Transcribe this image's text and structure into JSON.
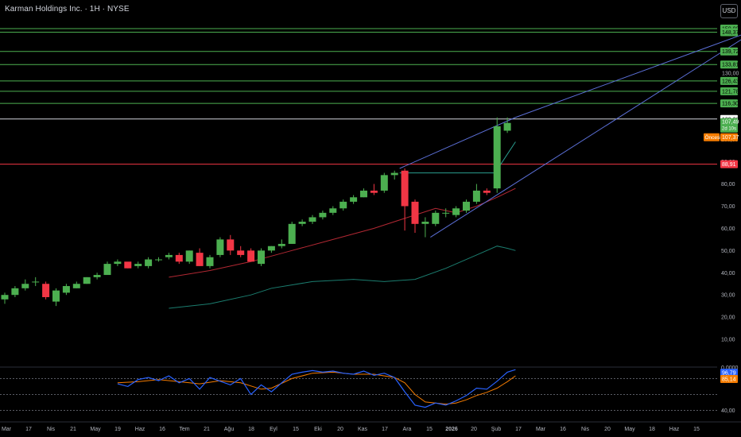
{
  "header": {
    "title": "Karman Holdings Inc. · 1H · NYSE",
    "currency_button": "USD"
  },
  "colors": {
    "up": "#4caf50",
    "down": "#f23645",
    "hline_green": "#4caf50",
    "hline_red": "#f23645",
    "hline_white": "#d1d4dc",
    "trend_blue": "#5b6fd6",
    "sma_red": "#b22833",
    "sma_teal": "#1b7d6f",
    "rsi_blue": "#2962ff",
    "rsi_orange": "#f57c00",
    "tag_green": "#4caf50",
    "tag_orange": "#f57c00"
  },
  "chart_data": {
    "type": "candlestick",
    "title": "Karman Holdings Inc. · 1H · NYSE",
    "currency": "USD",
    "ylim": [
      0,
      152
    ],
    "price_axis_ticks": [
      150,
      130,
      109.26,
      100,
      90,
      80,
      70,
      60,
      50,
      40,
      30,
      20,
      10,
      0
    ],
    "time_axis_labels": [
      "Mar",
      "17",
      "Nis",
      "21",
      "May",
      "19",
      "Haz",
      "16",
      "Tem",
      "21",
      "Ağu",
      "18",
      "Eyl",
      "15",
      "Eki",
      "20",
      "Kas",
      "17",
      "Ara",
      "15",
      "2026",
      "20",
      "Şub",
      "17",
      "Mar",
      "16",
      "Nis",
      "20",
      "May",
      "18",
      "Haz",
      "15"
    ],
    "candles": [
      {
        "o": 28,
        "h": 31,
        "l": 26,
        "c": 30
      },
      {
        "o": 30,
        "h": 34,
        "l": 29,
        "c": 33
      },
      {
        "o": 33,
        "h": 37,
        "l": 32,
        "c": 35
      },
      {
        "o": 36,
        "h": 38,
        "l": 34,
        "c": 36
      },
      {
        "o": 35,
        "h": 36,
        "l": 28,
        "c": 29
      },
      {
        "o": 27,
        "h": 33,
        "l": 25,
        "c": 32
      },
      {
        "o": 31,
        "h": 35,
        "l": 30,
        "c": 34
      },
      {
        "o": 33,
        "h": 36,
        "l": 33,
        "c": 35
      },
      {
        "o": 35,
        "h": 38,
        "l": 35,
        "c": 38
      },
      {
        "o": 38,
        "h": 40,
        "l": 37,
        "c": 39
      },
      {
        "o": 39,
        "h": 45,
        "l": 39,
        "c": 44
      },
      {
        "o": 44,
        "h": 46,
        "l": 43,
        "c": 45
      },
      {
        "o": 45,
        "h": 44,
        "l": 42,
        "c": 42
      },
      {
        "o": 43,
        "h": 45,
        "l": 42,
        "c": 44
      },
      {
        "o": 43,
        "h": 47,
        "l": 42,
        "c": 46
      },
      {
        "o": 46,
        "h": 47,
        "l": 45,
        "c": 46
      },
      {
        "o": 47,
        "h": 49,
        "l": 46,
        "c": 48
      },
      {
        "o": 48,
        "h": 49,
        "l": 44,
        "c": 45
      },
      {
        "o": 45,
        "h": 50,
        "l": 44,
        "c": 50
      },
      {
        "o": 49,
        "h": 51,
        "l": 43,
        "c": 43
      },
      {
        "o": 43,
        "h": 48,
        "l": 42,
        "c": 47
      },
      {
        "o": 48,
        "h": 56,
        "l": 47,
        "c": 55
      },
      {
        "o": 55,
        "h": 57,
        "l": 48,
        "c": 50
      },
      {
        "o": 50,
        "h": 52,
        "l": 47,
        "c": 48
      },
      {
        "o": 50,
        "h": 51,
        "l": 45,
        "c": 45
      },
      {
        "o": 44,
        "h": 51,
        "l": 43,
        "c": 50
      },
      {
        "o": 50,
        "h": 52,
        "l": 49,
        "c": 52
      },
      {
        "o": 52,
        "h": 55,
        "l": 51,
        "c": 53
      },
      {
        "o": 53,
        "h": 63,
        "l": 53,
        "c": 62
      },
      {
        "o": 62,
        "h": 64,
        "l": 61,
        "c": 63
      },
      {
        "o": 63,
        "h": 66,
        "l": 62,
        "c": 65
      },
      {
        "o": 65,
        "h": 68,
        "l": 64,
        "c": 67
      },
      {
        "o": 67,
        "h": 70,
        "l": 66,
        "c": 69
      },
      {
        "o": 69,
        "h": 73,
        "l": 68,
        "c": 72
      },
      {
        "o": 72,
        "h": 75,
        "l": 71,
        "c": 74
      },
      {
        "o": 74,
        "h": 78,
        "l": 74,
        "c": 77
      },
      {
        "o": 77,
        "h": 80,
        "l": 75,
        "c": 76
      },
      {
        "o": 77,
        "h": 85,
        "l": 76,
        "c": 84
      },
      {
        "o": 84,
        "h": 86,
        "l": 82,
        "c": 85
      },
      {
        "o": 86,
        "h": 87,
        "l": 59,
        "c": 70
      },
      {
        "o": 72,
        "h": 73,
        "l": 58,
        "c": 62
      },
      {
        "o": 62,
        "h": 65,
        "l": 56,
        "c": 63
      },
      {
        "o": 62,
        "h": 68,
        "l": 61,
        "c": 67
      },
      {
        "o": 67,
        "h": 69,
        "l": 65,
        "c": 67
      },
      {
        "o": 66,
        "h": 70,
        "l": 65,
        "c": 69
      },
      {
        "o": 68,
        "h": 73,
        "l": 67,
        "c": 72
      },
      {
        "o": 72,
        "h": 80,
        "l": 71,
        "c": 77
      },
      {
        "o": 77,
        "h": 78,
        "l": 75,
        "c": 76
      },
      {
        "o": 78,
        "h": 110,
        "l": 76,
        "c": 106
      },
      {
        "o": 104,
        "h": 110,
        "l": 103,
        "c": 107.49
      }
    ],
    "horizontal_levels": [
      {
        "value": 150.0,
        "label": "150,00",
        "color": "green"
      },
      {
        "value": 148.37,
        "label": "148,37",
        "color": "green"
      },
      {
        "value": 139.72,
        "label": "139,72",
        "color": "green"
      },
      {
        "value": 133.81,
        "label": "133,81",
        "color": "green"
      },
      {
        "value": 130.0,
        "label": "130,00",
        "color": "none"
      },
      {
        "value": 126.43,
        "label": "126,43",
        "color": "green"
      },
      {
        "value": 121.78,
        "label": "121,78",
        "color": "green"
      },
      {
        "value": 116.3,
        "label": "116,30",
        "color": "green"
      },
      {
        "value": 109.26,
        "label": "109,26",
        "color": "white"
      },
      {
        "value": 88.91,
        "label": "88,91",
        "color": "red"
      }
    ],
    "price_tags": {
      "last_price": "107,49",
      "countdown": "2d 10s",
      "previous_label": "Öncesi",
      "previous_price": "107,37"
    },
    "axis_labels": [
      "100,00",
      "90,00",
      "80,00",
      "70,00",
      "60,00",
      "50,00",
      "40,00",
      "30,00",
      "20,00",
      "10,00",
      "0,0000"
    ],
    "trendlines": [
      {
        "from": [
          38.5,
          87
        ],
        "to": [
          49.8,
          110
        ]
      },
      {
        "from": [
          49.8,
          110
        ],
        "to": [
          73.5,
          150
        ]
      },
      {
        "from": [
          41.5,
          56
        ],
        "to": [
          73.5,
          150
        ]
      }
    ],
    "channel_line": [
      [
        38.5,
        85
      ],
      [
        45.5,
        85
      ],
      [
        47.8,
        85
      ],
      [
        49.8,
        99
      ]
    ],
    "sma_red": [
      [
        16,
        38
      ],
      [
        20,
        41
      ],
      [
        24,
        45
      ],
      [
        28,
        50
      ],
      [
        32,
        55
      ],
      [
        36,
        60
      ],
      [
        40,
        66
      ],
      [
        42,
        69
      ],
      [
        44,
        67
      ],
      [
        46,
        70
      ],
      [
        48,
        74
      ],
      [
        49.8,
        78
      ]
    ],
    "sma_teal": [
      [
        16,
        24
      ],
      [
        20,
        26
      ],
      [
        24,
        30
      ],
      [
        26,
        33
      ],
      [
        30,
        36
      ],
      [
        34,
        37
      ],
      [
        37,
        36
      ],
      [
        40,
        37
      ],
      [
        43,
        42
      ],
      [
        46,
        48
      ],
      [
        48,
        52
      ],
      [
        49,
        51
      ],
      [
        49.8,
        50
      ]
    ],
    "rsi": {
      "levels_dotted": [
        80,
        50,
        20
      ],
      "labels": {
        "blue": "96,79",
        "orange": "85,14",
        "axis_mid": "40,00"
      },
      "blue": [
        [
          11,
          70
        ],
        [
          12,
          65
        ],
        [
          13,
          78
        ],
        [
          14,
          82
        ],
        [
          15,
          76
        ],
        [
          16,
          85
        ],
        [
          17,
          72
        ],
        [
          18,
          80
        ],
        [
          19,
          60
        ],
        [
          20,
          82
        ],
        [
          21,
          75
        ],
        [
          22,
          68
        ],
        [
          23,
          80
        ],
        [
          24,
          50
        ],
        [
          25,
          68
        ],
        [
          26,
          55
        ],
        [
          27,
          72
        ],
        [
          28,
          88
        ],
        [
          29,
          92
        ],
        [
          30,
          95
        ],
        [
          31,
          92
        ],
        [
          32,
          94
        ],
        [
          33,
          90
        ],
        [
          34,
          88
        ],
        [
          35,
          94
        ],
        [
          36,
          86
        ],
        [
          37,
          90
        ],
        [
          38,
          82
        ],
        [
          39,
          55
        ],
        [
          40,
          30
        ],
        [
          41,
          26
        ],
        [
          42,
          34
        ],
        [
          43,
          30
        ],
        [
          44,
          38
        ],
        [
          45,
          48
        ],
        [
          46,
          62
        ],
        [
          47,
          60
        ],
        [
          48,
          75
        ],
        [
          49,
          92
        ],
        [
          49.8,
          96.79
        ]
      ],
      "orange": [
        [
          11,
          72
        ],
        [
          13,
          74
        ],
        [
          15,
          78
        ],
        [
          17,
          74
        ],
        [
          19,
          70
        ],
        [
          21,
          76
        ],
        [
          23,
          72
        ],
        [
          25,
          60
        ],
        [
          26,
          62
        ],
        [
          28,
          80
        ],
        [
          30,
          90
        ],
        [
          32,
          92
        ],
        [
          34,
          88
        ],
        [
          36,
          88
        ],
        [
          38,
          82
        ],
        [
          39,
          72
        ],
        [
          40,
          50
        ],
        [
          41,
          36
        ],
        [
          42,
          34
        ],
        [
          43,
          32
        ],
        [
          44,
          34
        ],
        [
          45,
          40
        ],
        [
          46,
          48
        ],
        [
          47,
          54
        ],
        [
          48,
          62
        ],
        [
          49,
          74
        ],
        [
          49.8,
          85.14
        ]
      ]
    }
  }
}
